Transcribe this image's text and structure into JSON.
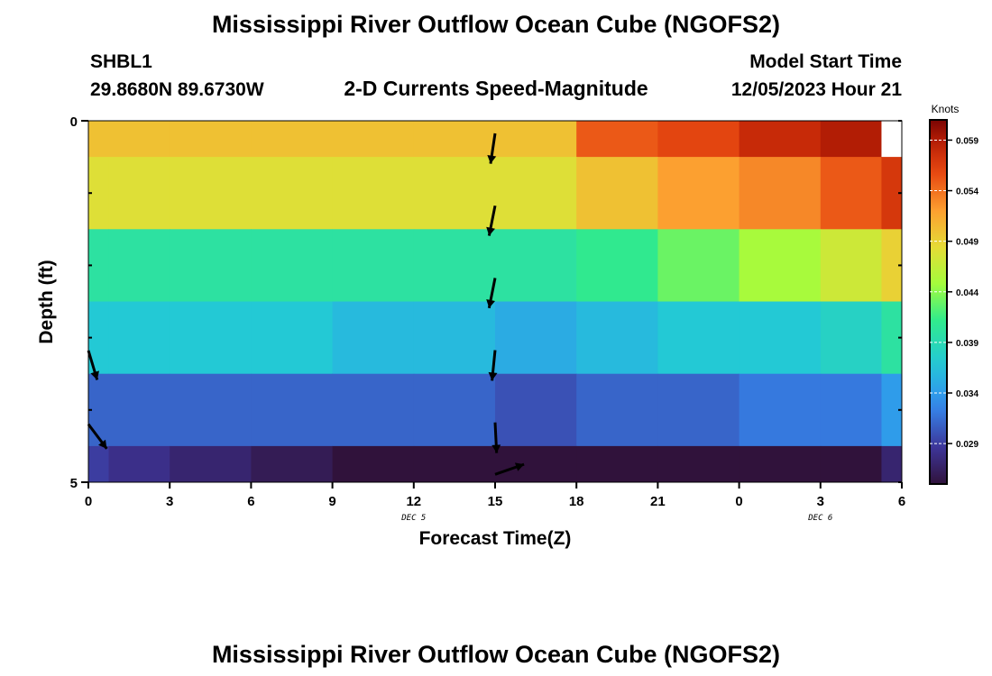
{
  "header": {
    "title": "Mississippi River Outflow Ocean Cube (NGOFS2)",
    "station_id": "SHBL1",
    "coords": "29.8680N  89.6730W",
    "subtitle": "2-D Currents Speed-Magnitude",
    "model_start_label": "Model Start Time",
    "model_start_value": "12/05/2023 Hour 21"
  },
  "footer": {
    "title": "Mississippi River Outflow Ocean Cube (NGOFS2)"
  },
  "chart_data": {
    "type": "heatmap",
    "title": "2-D Currents Speed-Magnitude",
    "xlabel": "Forecast Time(Z)",
    "ylabel": "Depth (ft)",
    "x_ticks": [
      "0",
      "3",
      "6",
      "9",
      "12",
      "15",
      "18",
      "21",
      "0",
      "3",
      "6"
    ],
    "x_range_hours": [
      0,
      30
    ],
    "x_day_labels": [
      {
        "text": "DEC 5",
        "at_hour": 14.5
      },
      {
        "text": "DEC 6",
        "at_hour": 32.5
      }
    ],
    "y_ticks": [
      "0",
      "5"
    ],
    "y_range": [
      0,
      5
    ],
    "colorbar": {
      "unit": "Knots",
      "min": 0.025,
      "max": 0.061,
      "ticks": [
        "0.059",
        "0.054",
        "0.049",
        "0.044",
        "0.039",
        "0.034",
        "0.029"
      ],
      "tick_values": [
        0.059,
        0.054,
        0.049,
        0.044,
        0.039,
        0.034,
        0.029
      ]
    },
    "column_centers_hours": [
      0,
      1.5,
      4.5,
      7.5,
      10.5,
      13.5,
      16.5,
      19.5,
      22.5,
      25.5,
      28.5,
      30
    ],
    "row_bounds": [
      0,
      0.5,
      1.5,
      2.5,
      3.5,
      4.5,
      5
    ],
    "values": [
      [
        0.05,
        0.05,
        0.05,
        0.05,
        0.05,
        0.05,
        0.05,
        0.055,
        0.056,
        0.058,
        0.059,
        null
      ],
      [
        0.048,
        0.048,
        0.048,
        0.048,
        0.048,
        0.048,
        0.048,
        0.05,
        0.052,
        0.053,
        0.055,
        0.057
      ],
      [
        0.04,
        0.04,
        0.04,
        0.04,
        0.04,
        0.04,
        0.04,
        0.041,
        0.043,
        0.045,
        0.047,
        0.049
      ],
      [
        0.037,
        0.037,
        0.037,
        0.037,
        0.036,
        0.036,
        0.035,
        0.036,
        0.037,
        0.037,
        0.038,
        0.04
      ],
      [
        0.031,
        0.031,
        0.031,
        0.031,
        0.031,
        0.031,
        0.03,
        0.031,
        0.031,
        0.032,
        0.032,
        0.034
      ],
      [
        0.029,
        0.028,
        0.027,
        0.026,
        0.024,
        0.023,
        0.021,
        0.022,
        0.023,
        0.024,
        0.025,
        0.027
      ]
    ],
    "vectors": [
      {
        "hour": 15,
        "depth": 0.3,
        "dx": -0.15,
        "dy": 1
      },
      {
        "hour": 15,
        "depth": 1.3,
        "dx": -0.2,
        "dy": 1
      },
      {
        "hour": 15,
        "depth": 2.3,
        "dx": -0.2,
        "dy": 1
      },
      {
        "hour": 15,
        "depth": 3.3,
        "dx": -0.1,
        "dy": 1
      },
      {
        "hour": 15,
        "depth": 4.3,
        "dx": 0.05,
        "dy": 1
      },
      {
        "hour": 15,
        "depth": 4.85,
        "dx": 1,
        "dy": -0.35
      },
      {
        "hour": 0,
        "depth": 3.3,
        "dx": 0.3,
        "dy": 1
      },
      {
        "hour": 0,
        "depth": 4.3,
        "dx": 0.6,
        "dy": 0.8
      }
    ]
  }
}
